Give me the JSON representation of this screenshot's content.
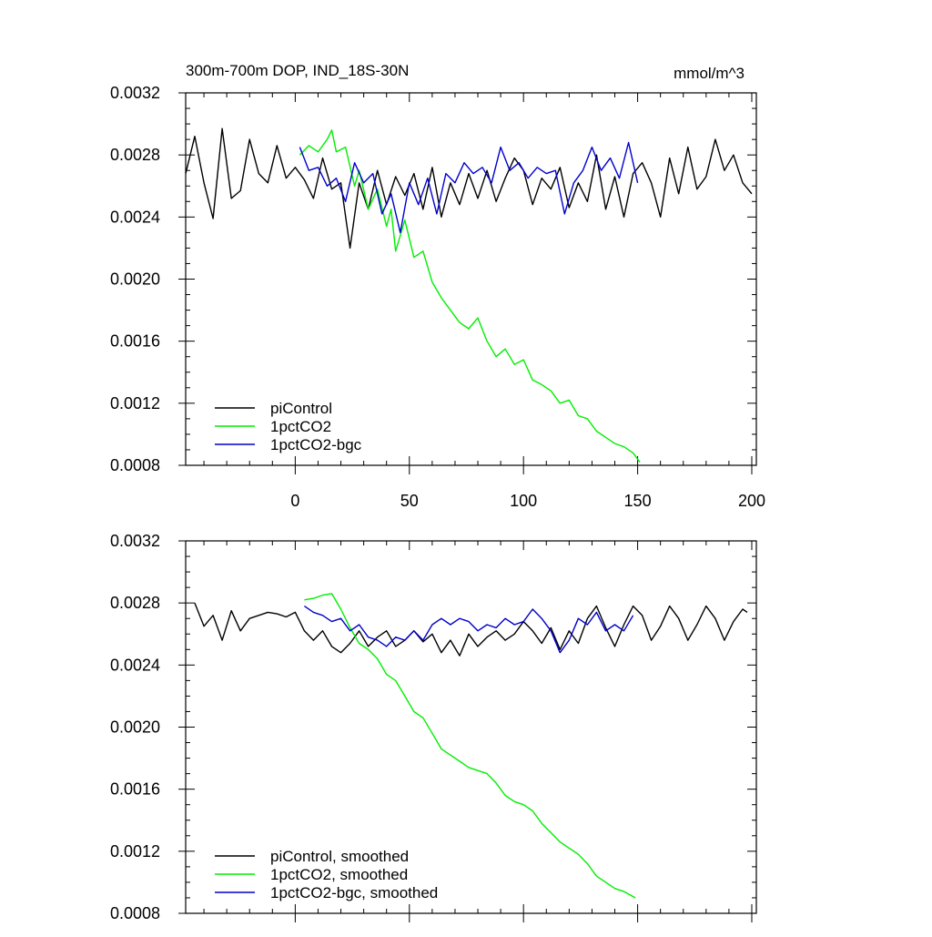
{
  "chart_data": [
    {
      "type": "line",
      "title": "300m-700m DOP, IND_18S-30N",
      "units": "mmol/m^3",
      "xlabel": "",
      "ylabel": "",
      "xlim": [
        -48,
        202
      ],
      "ylim": [
        0.0008,
        0.0032
      ],
      "xticks": [
        0,
        50,
        100,
        150,
        200
      ],
      "xtick_labels": [
        "0",
        "50",
        "100",
        "150",
        "200"
      ],
      "yticks": [
        0.0008,
        0.0012,
        0.0016,
        0.002,
        0.0024,
        0.0028,
        0.0032
      ],
      "ytick_labels": [
        "0.0008",
        "0.0012",
        "0.0016",
        "0.0020",
        "0.0024",
        "0.0028",
        "0.0032"
      ],
      "grid": false,
      "legend_position": "bottom-left",
      "series": [
        {
          "name": "piControl",
          "color": "#000000",
          "x": [
            -48,
            -44,
            -40,
            -36,
            -32,
            -28,
            -24,
            -20,
            -16,
            -12,
            -8,
            -4,
            0,
            4,
            8,
            12,
            16,
            20,
            24,
            28,
            32,
            36,
            40,
            44,
            48,
            52,
            56,
            60,
            64,
            68,
            72,
            76,
            80,
            84,
            88,
            92,
            96,
            100,
            104,
            108,
            112,
            116,
            120,
            124,
            128,
            132,
            136,
            140,
            144,
            148,
            152,
            156,
            160,
            164,
            168,
            172,
            176,
            180,
            184,
            188,
            192,
            196,
            200
          ],
          "y": [
            0.00268,
            0.00292,
            0.00262,
            0.00239,
            0.00297,
            0.00252,
            0.00257,
            0.0029,
            0.00268,
            0.00262,
            0.00286,
            0.00265,
            0.00272,
            0.00264,
            0.00252,
            0.00278,
            0.00258,
            0.00262,
            0.0022,
            0.00262,
            0.00245,
            0.0027,
            0.00248,
            0.00266,
            0.00254,
            0.00268,
            0.00245,
            0.00272,
            0.0024,
            0.00262,
            0.00248,
            0.00268,
            0.00252,
            0.0027,
            0.0025,
            0.00265,
            0.00278,
            0.0027,
            0.00248,
            0.00265,
            0.00258,
            0.00272,
            0.00246,
            0.00262,
            0.0025,
            0.0028,
            0.00245,
            0.00266,
            0.0024,
            0.00268,
            0.00275,
            0.00262,
            0.0024,
            0.00278,
            0.00255,
            0.00285,
            0.00258,
            0.00266,
            0.0029,
            0.0027,
            0.0028,
            0.00262,
            0.00255
          ]
        },
        {
          "name": "1pctCO2",
          "color": "#00ee00",
          "x": [
            2,
            6,
            10,
            14,
            16,
            18,
            22,
            26,
            28,
            32,
            36,
            40,
            42,
            44,
            48,
            52,
            56,
            60,
            64,
            68,
            72,
            76,
            80,
            84,
            88,
            92,
            96,
            100,
            104,
            108,
            112,
            116,
            120,
            124,
            128,
            132,
            136,
            140,
            144,
            148,
            151
          ],
          "y": [
            0.0028,
            0.00286,
            0.00282,
            0.0029,
            0.00296,
            0.00282,
            0.00285,
            0.0026,
            0.0027,
            0.00245,
            0.00258,
            0.00234,
            0.00245,
            0.00218,
            0.00238,
            0.00214,
            0.00218,
            0.00198,
            0.00188,
            0.0018,
            0.00172,
            0.00168,
            0.00175,
            0.0016,
            0.0015,
            0.00155,
            0.00145,
            0.00148,
            0.00135,
            0.00132,
            0.00128,
            0.0012,
            0.00122,
            0.00112,
            0.0011,
            0.00102,
            0.00098,
            0.00094,
            0.00092,
            0.00088,
            0.00082
          ]
        },
        {
          "name": "1pctCO2-bgc",
          "color": "#0000cc",
          "x": [
            2,
            6,
            10,
            14,
            18,
            22,
            26,
            30,
            34,
            38,
            42,
            46,
            50,
            54,
            58,
            62,
            66,
            70,
            74,
            78,
            82,
            86,
            90,
            94,
            98,
            102,
            106,
            110,
            114,
            118,
            122,
            126,
            130,
            134,
            138,
            142,
            146,
            150
          ],
          "y": [
            0.00285,
            0.0027,
            0.00272,
            0.0026,
            0.00265,
            0.0025,
            0.00275,
            0.00262,
            0.00268,
            0.00242,
            0.00255,
            0.0023,
            0.00262,
            0.00248,
            0.00265,
            0.00242,
            0.00268,
            0.00262,
            0.00275,
            0.00268,
            0.00272,
            0.00262,
            0.00285,
            0.0027,
            0.00275,
            0.00265,
            0.00272,
            0.00268,
            0.0027,
            0.00242,
            0.00262,
            0.0027,
            0.00285,
            0.0027,
            0.00278,
            0.00265,
            0.00288,
            0.00262
          ]
        }
      ]
    },
    {
      "type": "line",
      "title": "",
      "units": "",
      "xlabel": "",
      "ylabel": "",
      "xlim": [
        -48,
        202
      ],
      "ylim": [
        0.0008,
        0.0032
      ],
      "xticks": [
        0,
        50,
        100,
        150,
        200
      ],
      "xtick_labels": [],
      "yticks": [
        0.0008,
        0.0012,
        0.0016,
        0.002,
        0.0024,
        0.0028,
        0.0032
      ],
      "ytick_labels": [
        "0.0008",
        "0.0012",
        "0.0016",
        "0.0020",
        "0.0024",
        "0.0028",
        "0.0032"
      ],
      "grid": false,
      "legend_position": "bottom-left",
      "series": [
        {
          "name": "piControl, smoothed",
          "color": "#000000",
          "x": [
            -44,
            -40,
            -36,
            -32,
            -28,
            -24,
            -20,
            -16,
            -12,
            -8,
            -4,
            0,
            4,
            8,
            12,
            16,
            20,
            24,
            28,
            32,
            36,
            40,
            44,
            48,
            52,
            56,
            60,
            64,
            68,
            72,
            76,
            80,
            84,
            88,
            92,
            96,
            100,
            104,
            108,
            112,
            116,
            120,
            124,
            128,
            132,
            136,
            140,
            144,
            148,
            152,
            156,
            160,
            164,
            168,
            172,
            176,
            180,
            184,
            188,
            192,
            196,
            198
          ],
          "y": [
            0.0028,
            0.00265,
            0.00272,
            0.00256,
            0.00275,
            0.00262,
            0.0027,
            0.00272,
            0.00274,
            0.00273,
            0.00271,
            0.00274,
            0.00262,
            0.00256,
            0.00262,
            0.00252,
            0.00248,
            0.00254,
            0.00262,
            0.00252,
            0.00258,
            0.00262,
            0.00252,
            0.00256,
            0.00262,
            0.00255,
            0.0026,
            0.00248,
            0.00256,
            0.00246,
            0.0026,
            0.00252,
            0.00258,
            0.00262,
            0.00256,
            0.0026,
            0.00268,
            0.00262,
            0.00254,
            0.00264,
            0.0025,
            0.00262,
            0.00254,
            0.0027,
            0.00278,
            0.00264,
            0.00252,
            0.00266,
            0.00278,
            0.00272,
            0.00256,
            0.00265,
            0.00278,
            0.0027,
            0.00256,
            0.00266,
            0.00278,
            0.0027,
            0.00256,
            0.00268,
            0.00276,
            0.00274
          ]
        },
        {
          "name": "1pctCO2, smoothed",
          "color": "#00ee00",
          "x": [
            4,
            8,
            12,
            16,
            20,
            24,
            28,
            32,
            36,
            40,
            44,
            48,
            52,
            56,
            60,
            64,
            68,
            72,
            76,
            80,
            84,
            88,
            92,
            96,
            100,
            104,
            108,
            112,
            116,
            120,
            124,
            128,
            132,
            136,
            140,
            144,
            149
          ],
          "y": [
            0.00282,
            0.00283,
            0.00285,
            0.00286,
            0.00276,
            0.00264,
            0.00254,
            0.0025,
            0.00244,
            0.00234,
            0.0023,
            0.0022,
            0.0021,
            0.00206,
            0.00196,
            0.00186,
            0.00182,
            0.00178,
            0.00174,
            0.00172,
            0.0017,
            0.00164,
            0.00156,
            0.00152,
            0.0015,
            0.00146,
            0.00138,
            0.00132,
            0.00126,
            0.00122,
            0.00118,
            0.00112,
            0.00104,
            0.001,
            0.00096,
            0.00094,
            0.0009
          ]
        },
        {
          "name": "1pctCO2-bgc, smoothed",
          "color": "#0000cc",
          "x": [
            4,
            8,
            12,
            16,
            20,
            24,
            28,
            32,
            36,
            40,
            44,
            48,
            52,
            56,
            60,
            64,
            68,
            72,
            76,
            80,
            84,
            88,
            92,
            96,
            100,
            104,
            108,
            112,
            116,
            120,
            124,
            128,
            132,
            136,
            140,
            144,
            148
          ],
          "y": [
            0.00278,
            0.00274,
            0.00272,
            0.00268,
            0.0027,
            0.00262,
            0.00266,
            0.00258,
            0.00256,
            0.00252,
            0.00258,
            0.00256,
            0.00262,
            0.00256,
            0.00266,
            0.0027,
            0.00266,
            0.0027,
            0.00268,
            0.00262,
            0.00266,
            0.00264,
            0.0027,
            0.00266,
            0.00268,
            0.00276,
            0.0027,
            0.00262,
            0.00248,
            0.00256,
            0.0027,
            0.00266,
            0.00274,
            0.00262,
            0.00266,
            0.00262,
            0.00272
          ]
        }
      ]
    }
  ]
}
